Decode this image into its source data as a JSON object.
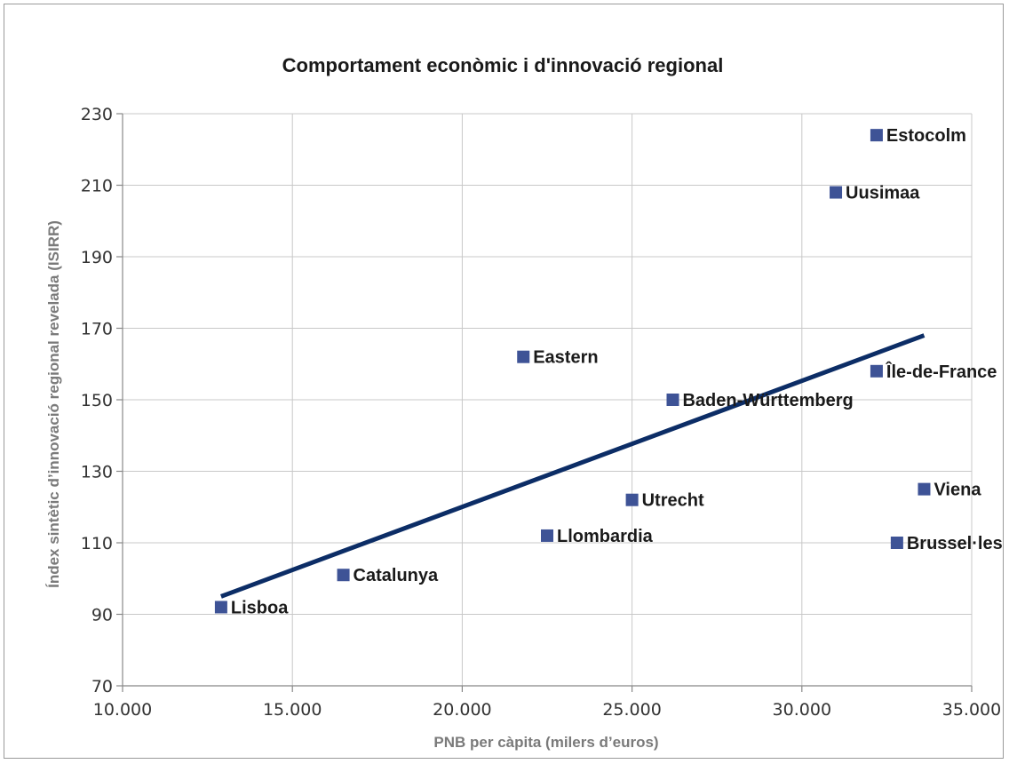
{
  "chart_data": {
    "type": "scatter",
    "title": "Comportament econòmic i d'innovació regional",
    "xlabel": "PNB per càpita (milers d’euros)",
    "ylabel": "Índex sintètic d’innovació regional revelada (ISIRR)",
    "xlim": [
      10000,
      35000
    ],
    "ylim": [
      70,
      230
    ],
    "x_ticks": [
      10000,
      15000,
      20000,
      25000,
      30000,
      35000
    ],
    "x_tick_labels": [
      "10.000",
      "15.000",
      "20.000",
      "25.000",
      "30.000",
      "35.000"
    ],
    "y_ticks": [
      70,
      90,
      110,
      130,
      150,
      170,
      190,
      210,
      230
    ],
    "y_tick_labels": [
      "70",
      "90",
      "110",
      "130",
      "150",
      "170",
      "190",
      "210",
      "230"
    ],
    "grid": true,
    "marker_color": "#3e5396",
    "trendline_color": "#0c2d66",
    "points": [
      {
        "label": "Lisboa",
        "x": 12900,
        "y": 92
      },
      {
        "label": "Catalunya",
        "x": 16500,
        "y": 101
      },
      {
        "label": "Eastern",
        "x": 21800,
        "y": 162
      },
      {
        "label": "Llombardia",
        "x": 22500,
        "y": 112
      },
      {
        "label": "Utrecht",
        "x": 25000,
        "y": 122
      },
      {
        "label": "Baden-Württemberg",
        "x": 26200,
        "y": 150
      },
      {
        "label": "Uusimaa",
        "x": 31000,
        "y": 208
      },
      {
        "label": "Estocolm",
        "x": 32200,
        "y": 224
      },
      {
        "label": "Île-de-France",
        "x": 32200,
        "y": 158
      },
      {
        "label": "Viena",
        "x": 33600,
        "y": 125
      },
      {
        "label": "Brussel·les",
        "x": 32800,
        "y": 110
      }
    ],
    "trendline": {
      "x": [
        12900,
        33600
      ],
      "y": [
        95,
        168
      ]
    }
  }
}
